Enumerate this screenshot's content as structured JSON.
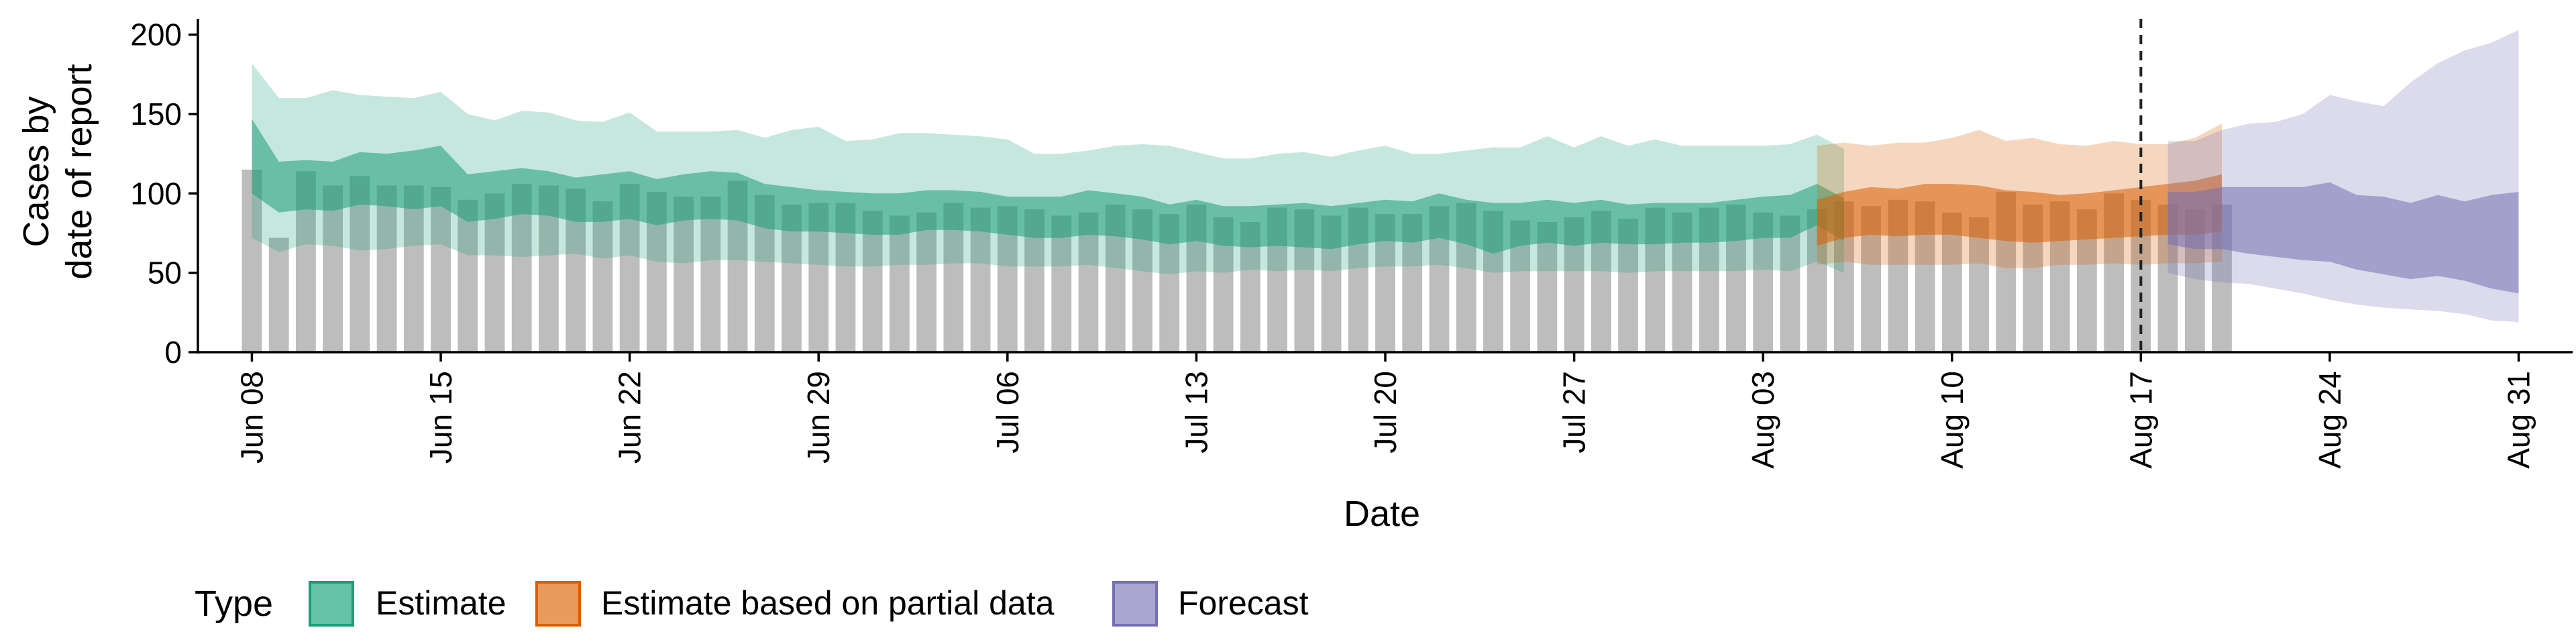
{
  "chart_data": {
    "type": "bar",
    "xlabel": "Date",
    "ylabel": [
      "Cases by",
      "date of report"
    ],
    "ylim": [
      0,
      210
    ],
    "yticks": [
      0,
      50,
      100,
      150,
      200
    ],
    "x_range": [
      "2020-06-06",
      "2020-09-02"
    ],
    "xticks": [
      {
        "date": "2020-06-08",
        "label": "Jun 08"
      },
      {
        "date": "2020-06-15",
        "label": "Jun 15"
      },
      {
        "date": "2020-06-22",
        "label": "Jun 22"
      },
      {
        "date": "2020-06-29",
        "label": "Jun 29"
      },
      {
        "date": "2020-07-06",
        "label": "Jul 06"
      },
      {
        "date": "2020-07-13",
        "label": "Jul 13"
      },
      {
        "date": "2020-07-20",
        "label": "Jul 20"
      },
      {
        "date": "2020-07-27",
        "label": "Jul 27"
      },
      {
        "date": "2020-08-03",
        "label": "Aug 03"
      },
      {
        "date": "2020-08-10",
        "label": "Aug 10"
      },
      {
        "date": "2020-08-17",
        "label": "Aug 17"
      },
      {
        "date": "2020-08-24",
        "label": "Aug 24"
      },
      {
        "date": "2020-08-31",
        "label": "Aug 31"
      }
    ],
    "vline_date": "2020-08-17",
    "grid": false,
    "legend": {
      "position": "bottom",
      "title": "Type",
      "entries": [
        {
          "label": "Estimate",
          "fill": "#66c2a5",
          "border": "#1b9e77"
        },
        {
          "label": "Estimate based on partial data",
          "fill": "#e89a5f",
          "border": "#d95f02"
        },
        {
          "label": "Forecast",
          "fill": "#a9a6d2",
          "border": "#7570b3"
        }
      ]
    },
    "colors": {
      "bars": "#bdbdbd",
      "Estimate": "#1b9e77",
      "Estimate based on partial data": "#d95f02",
      "Forecast": "#7570b3"
    },
    "bars": {
      "start_date": "2020-06-08",
      "values": [
        115,
        72,
        114,
        105,
        111,
        105,
        105,
        104,
        96,
        100,
        106,
        105,
        103,
        95,
        106,
        101,
        98,
        98,
        108,
        99,
        93,
        94,
        94,
        89,
        86,
        88,
        94,
        91,
        92,
        90,
        86,
        88,
        93,
        90,
        87,
        93,
        85,
        82,
        91,
        90,
        86,
        91,
        87,
        87,
        92,
        94,
        89,
        83,
        82,
        85,
        89,
        84,
        91,
        88,
        91,
        93,
        88,
        86,
        90,
        95,
        92,
        96,
        95,
        88,
        85,
        101,
        93,
        95,
        90,
        100,
        96,
        93,
        90,
        93
      ]
    },
    "ribbons": [
      {
        "name": "Estimate",
        "start_date": "2020-06-08",
        "outer_upper": [
          182,
          160,
          160,
          165,
          162,
          161,
          160,
          164,
          150,
          146,
          152,
          151,
          146,
          145,
          151,
          139,
          139,
          139,
          140,
          135,
          140,
          142,
          133,
          134,
          138,
          138,
          137,
          136,
          134,
          125,
          125,
          127,
          130,
          131,
          130,
          126,
          122,
          122,
          125,
          126,
          123,
          127,
          130,
          125,
          125,
          127,
          129,
          129,
          136,
          129,
          136,
          130,
          134,
          130,
          130,
          130,
          130,
          131,
          137,
          128
        ],
        "inner_upper": [
          147,
          120,
          121,
          120,
          126,
          125,
          127,
          130,
          112,
          114,
          116,
          114,
          110,
          112,
          114,
          109,
          112,
          114,
          113,
          106,
          104,
          102,
          101,
          100,
          100,
          102,
          102,
          101,
          98,
          98,
          98,
          102,
          100,
          98,
          93,
          96,
          92,
          92,
          93,
          94,
          92,
          94,
          96,
          95,
          100,
          96,
          94,
          94,
          96,
          94,
          96,
          93,
          94,
          94,
          94,
          96,
          98,
          99,
          106,
          97
        ],
        "inner_lower": [
          100,
          88,
          90,
          89,
          93,
          92,
          90,
          92,
          82,
          84,
          87,
          86,
          82,
          82,
          84,
          80,
          83,
          84,
          83,
          78,
          76,
          76,
          75,
          74,
          74,
          77,
          77,
          76,
          74,
          72,
          72,
          74,
          73,
          71,
          68,
          70,
          67,
          66,
          67,
          66,
          65,
          68,
          70,
          69,
          72,
          68,
          62,
          67,
          69,
          67,
          69,
          68,
          68,
          69,
          69,
          70,
          72,
          72,
          80,
          70
        ],
        "outer_lower": [
          72,
          63,
          68,
          67,
          64,
          65,
          67,
          68,
          61,
          61,
          60,
          61,
          62,
          59,
          61,
          57,
          56,
          58,
          58,
          57,
          56,
          55,
          54,
          54,
          55,
          55,
          56,
          56,
          54,
          54,
          54,
          55,
          53,
          51,
          49,
          51,
          50,
          52,
          51,
          52,
          51,
          53,
          54,
          54,
          55,
          53,
          50,
          51,
          51,
          51,
          51,
          50,
          51,
          51,
          51,
          51,
          52,
          51,
          57,
          50
        ]
      },
      {
        "name": "Estimate based on partial data",
        "start_date": "2020-08-05",
        "outer_upper": [
          130,
          132,
          130,
          132,
          132,
          135,
          140,
          133,
          135,
          131,
          130,
          133,
          131,
          131,
          135,
          144
        ],
        "inner_upper": [
          96,
          101,
          104,
          103,
          106,
          106,
          105,
          102,
          101,
          99,
          100,
          102,
          104,
          106,
          108,
          112
        ],
        "inner_lower": [
          67,
          72,
          74,
          73,
          74,
          74,
          72,
          70,
          69,
          70,
          71,
          72,
          73,
          74,
          74,
          76
        ],
        "outer_lower": [
          55,
          57,
          55,
          55,
          55,
          55,
          56,
          53,
          53,
          55,
          55,
          56,
          55,
          56,
          56,
          57
        ]
      },
      {
        "name": "Forecast",
        "start_date": "2020-08-18",
        "outer_upper": [
          133,
          133,
          140,
          144,
          145,
          150,
          162,
          158,
          155,
          170,
          182,
          190,
          195,
          203
        ],
        "inner_upper": [
          101,
          101,
          104,
          104,
          104,
          104,
          107,
          99,
          98,
          94,
          99,
          95,
          99,
          101
        ],
        "inner_lower": [
          68,
          65,
          65,
          62,
          60,
          58,
          57,
          52,
          49,
          46,
          48,
          45,
          40,
          37
        ],
        "outer_lower": [
          50,
          46,
          44,
          43,
          40,
          37,
          33,
          30,
          28,
          27,
          26,
          24,
          20,
          19
        ]
      }
    ]
  }
}
